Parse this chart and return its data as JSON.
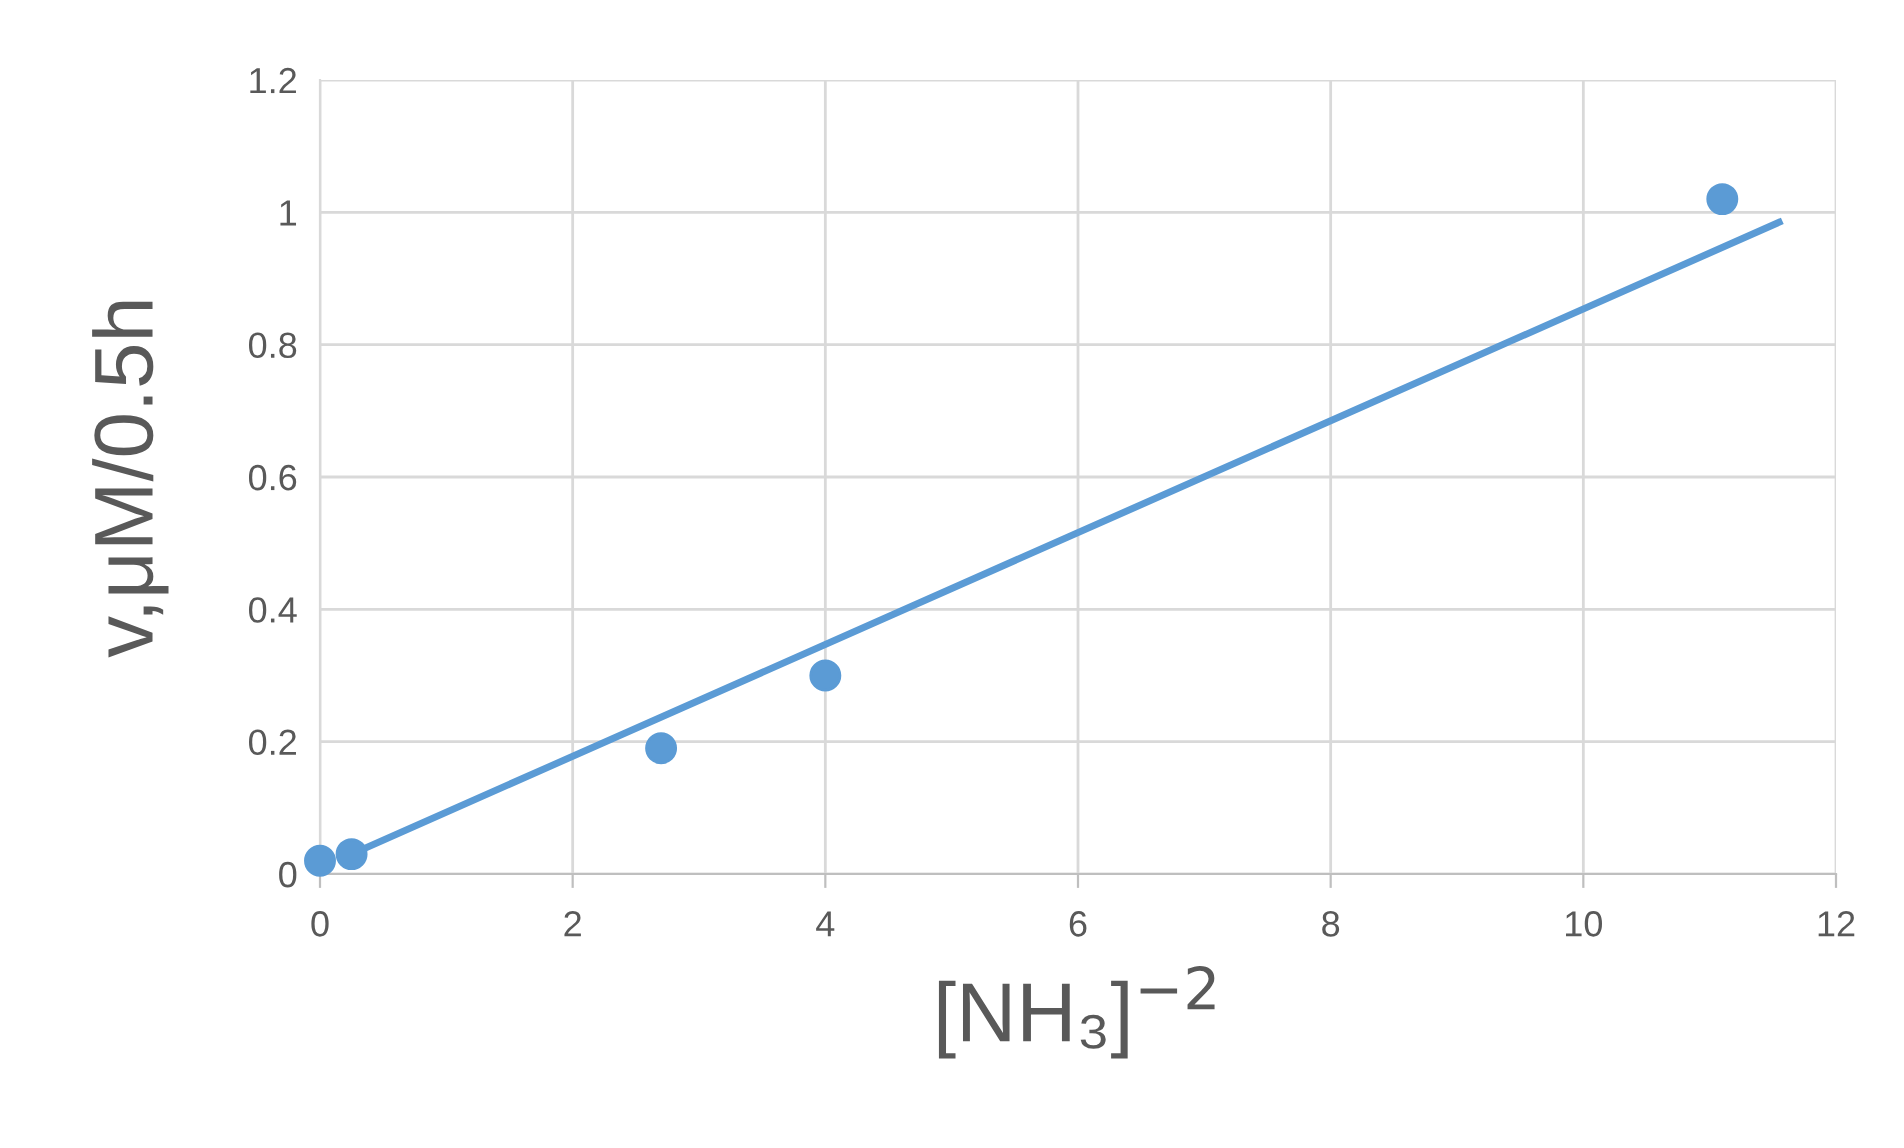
{
  "chart_data": {
    "type": "scatter",
    "xlabel": "[NH₃]$^{−2}$",
    "ylabel": "v,μM/0.5h",
    "series": [
      {
        "color": "#5b9bd5",
        "x": [
          0,
          0.25,
          2.7,
          4,
          11.1
        ],
        "values": [
          0.02,
          0.03,
          0.19,
          0.3,
          1.02
        ],
        "marker": "circle"
      },
      {
        "type": "line",
        "color": "#5b9bd5",
        "x": [
          0.25,
          11.55
        ],
        "values": [
          0.03,
          0.985
        ],
        "marker": "none",
        "line_style": "solid"
      }
    ],
    "xlim": [
      0,
      12
    ],
    "xticks": [
      0,
      2,
      4,
      6,
      8,
      10,
      12
    ],
    "ylim": [
      0,
      1.2
    ],
    "yticks": [
      0,
      0.2,
      0.4,
      0.6,
      0.8,
      1,
      1.2
    ],
    "grid": true,
    "legend": false
  }
}
